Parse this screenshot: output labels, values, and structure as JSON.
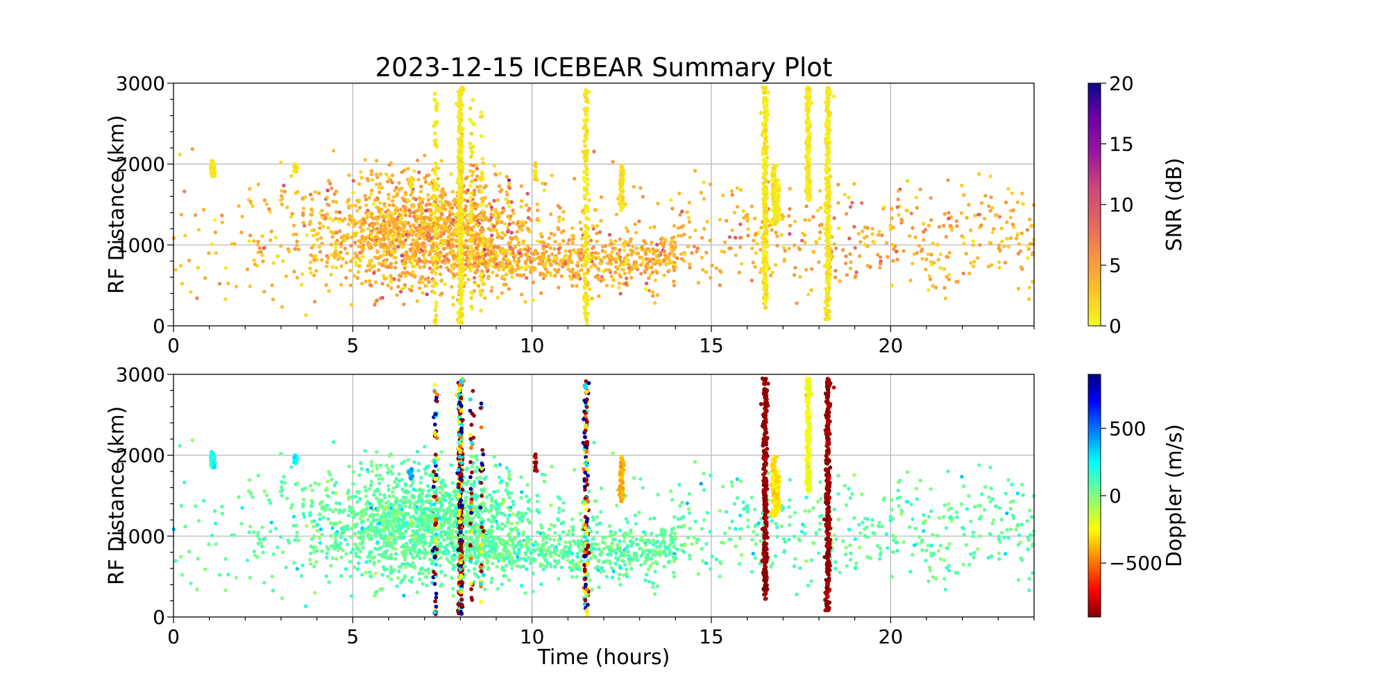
{
  "chart_data": [
    {
      "type": "scatter",
      "title": "2023-12-15 ICEBEAR Summary Plot",
      "xlabel": "",
      "ylabel": "RF Distance (km)",
      "xlim": [
        0,
        24
      ],
      "ylim": [
        0,
        3000
      ],
      "xticks": [
        "0",
        "5",
        "10",
        "15",
        "20"
      ],
      "yticks": [
        "0",
        "1000",
        "2000",
        "3000"
      ],
      "grid": true,
      "color_by": "snr",
      "colorbar": {
        "label": "SNR (dB)",
        "range": [
          0,
          20
        ],
        "ticks": [
          "0",
          "5",
          "10",
          "15",
          "20"
        ],
        "colormap": "plasma_r"
      }
    },
    {
      "type": "scatter",
      "xlabel": "Time (hours)",
      "ylabel": "RF Distance (km)",
      "xlim": [
        0,
        24
      ],
      "ylim": [
        0,
        3000
      ],
      "xticks": [
        "0",
        "5",
        "10",
        "15",
        "20"
      ],
      "yticks": [
        "0",
        "1000",
        "2000",
        "3000"
      ],
      "grid": true,
      "color_by": "doppler",
      "colorbar": {
        "label": "Doppler (m/s)",
        "range": [
          -900,
          900
        ],
        "ticks": [
          "−500",
          "0",
          "500"
        ],
        "tick_values": [
          -500,
          0,
          500
        ],
        "colormap": "jet"
      }
    }
  ],
  "scatter_clusters": [
    {
      "t_mean": 7.0,
      "t_sd": 1.5,
      "t_min": 2,
      "t_max": 10,
      "r_mean": 1150,
      "r_sd": 350,
      "count": 1300,
      "snr_mean": 4,
      "doppler_mean": 60
    },
    {
      "t_min": 8,
      "t_max": 14,
      "r_mean": 820,
      "r_sd": 150,
      "count": 500,
      "snr_mean": 4,
      "doppler_mean": 60
    },
    {
      "t_min": 2,
      "t_max": 14,
      "r_mean": 1100,
      "r_sd": 400,
      "count": 450,
      "snr_mean": 3.5,
      "doppler_mean": 60
    },
    {
      "t_min": 14,
      "t_max": 24,
      "r_mean": 1050,
      "r_sd": 350,
      "count": 420,
      "snr_mean": 4,
      "doppler_mean": 60
    },
    {
      "t_min": 0,
      "t_max": 2,
      "r_mean": 1000,
      "r_sd": 450,
      "count": 35,
      "snr_mean": 3,
      "doppler_mean": 60
    }
  ],
  "streaks": [
    {
      "t": 1.1,
      "r": [
        1850,
        2050
      ],
      "count": 30,
      "snr": 1,
      "doppler": 250
    },
    {
      "t": 3.4,
      "r": [
        1900,
        2000
      ],
      "count": 15,
      "snr": 1,
      "doppler": 250
    },
    {
      "t": 6.6,
      "r": [
        1700,
        1850
      ],
      "count": 12,
      "snr": 1.5,
      "doppler": 450
    },
    {
      "t": 7.3,
      "r": [
        0,
        2950
      ],
      "count": 70,
      "snr": 1,
      "doppler": "mixed"
    },
    {
      "t": 8.0,
      "r": [
        0,
        2950
      ],
      "count": 400,
      "snr": 1,
      "doppler": "mixed"
    },
    {
      "t": 8.3,
      "r": [
        0,
        2850
      ],
      "count": 40,
      "snr": 1,
      "doppler": "mixed"
    },
    {
      "t": 8.6,
      "r": [
        0,
        2800
      ],
      "count": 30,
      "snr": 1,
      "doppler": "mixed"
    },
    {
      "t": 10.1,
      "r": [
        1800,
        2020
      ],
      "count": 12,
      "snr": 1.5,
      "doppler": -850
    },
    {
      "t": 11.5,
      "r": [
        0,
        2950
      ],
      "count": 150,
      "snr": 1,
      "doppler": "mixed"
    },
    {
      "t": 12.5,
      "r": [
        1400,
        2000
      ],
      "count": 70,
      "snr": 1.5,
      "doppler": -400
    },
    {
      "t": 16.5,
      "r": [
        200,
        2950
      ],
      "count": 300,
      "snr": 1,
      "doppler": -870
    },
    {
      "t": 16.75,
      "r": [
        1250,
        2000
      ],
      "count": 90,
      "snr": 0.8,
      "doppler": -300
    },
    {
      "t": 16.85,
      "r": [
        1300,
        1800
      ],
      "count": 70,
      "snr": 0.8,
      "doppler": -300
    },
    {
      "t": 17.7,
      "r": [
        1550,
        2950
      ],
      "count": 180,
      "snr": 0.8,
      "doppler": -230
    },
    {
      "t": 18.25,
      "r": [
        80,
        2950
      ],
      "count": 320,
      "snr": 1,
      "doppler": -870
    }
  ]
}
